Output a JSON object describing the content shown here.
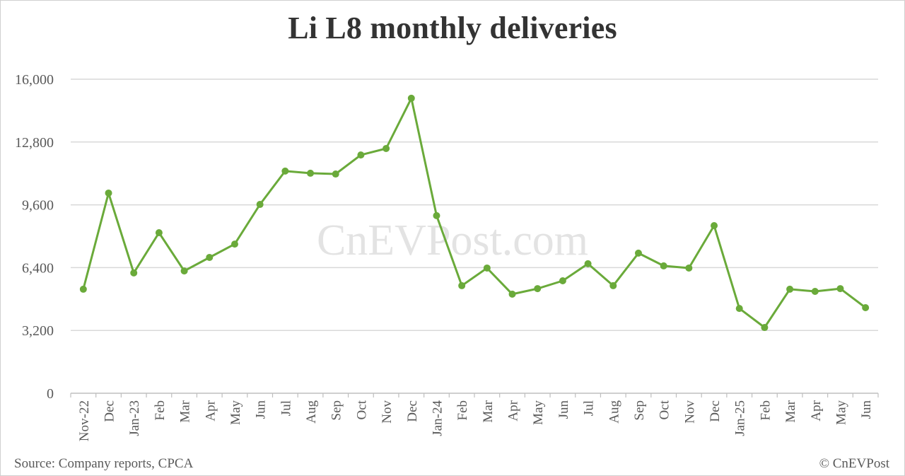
{
  "chart_data": {
    "type": "line",
    "title": "Li L8 monthly deliveries",
    "xlabel": "",
    "ylabel": "",
    "ylim": [
      0,
      16000
    ],
    "yticks": [
      0,
      3200,
      6400,
      9600,
      12800,
      16000
    ],
    "ytick_labels": [
      "0",
      "3,200",
      "6,400",
      "9,600",
      "12,800",
      "16,000"
    ],
    "grid": true,
    "legend": "none",
    "categories": [
      "Nov-22",
      "Dec",
      "Jan-23",
      "Feb",
      "Mar",
      "Apr",
      "May",
      "Jun",
      "Jul",
      "Aug",
      "Sep",
      "Oct",
      "Nov",
      "Dec",
      "Jan-24",
      "Feb",
      "Mar",
      "Apr",
      "May",
      "Jun",
      "Jul",
      "Aug",
      "Sep",
      "Oct",
      "Nov",
      "Dec",
      "Jan-25",
      "Feb",
      "Mar",
      "Apr",
      "May",
      "Jun"
    ],
    "series": [
      {
        "name": "Li L8 deliveries",
        "color": "#6aaa3a",
        "values": [
          5300,
          10200,
          6130,
          8180,
          6230,
          6920,
          7600,
          9620,
          11320,
          11210,
          11170,
          12140,
          12470,
          15030,
          9050,
          5480,
          6380,
          5050,
          5330,
          5730,
          6600,
          5480,
          7140,
          6490,
          6380,
          8540,
          4320,
          3350,
          5300,
          5190,
          5330,
          4360
        ]
      }
    ],
    "watermark": "CnEVPost.com",
    "source": "Source: Company reports, CPCA",
    "credit": "© CnEVPost"
  },
  "colors": {
    "line": "#6aaa3a",
    "grid": "#d9d9d9",
    "axis_text": "#595959",
    "title": "#333333",
    "watermark": "#e3e3e3"
  }
}
